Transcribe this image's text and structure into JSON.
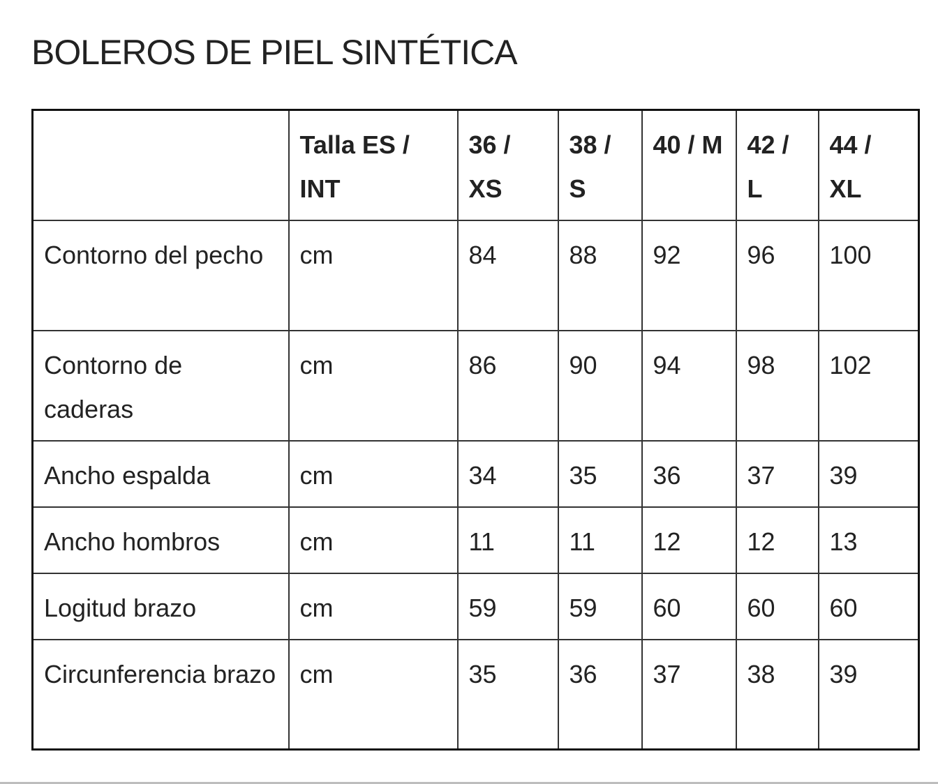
{
  "title": "BOLEROS DE PIEL SINTÉTICA",
  "table": {
    "headers": [
      "",
      "Talla ES / INT",
      "36 / XS",
      "38 / S",
      "40 / M",
      "42 / L",
      "44 / XL"
    ],
    "rows": [
      [
        "Contorno del pecho",
        "cm",
        "84",
        "88",
        "92",
        "96",
        "100"
      ],
      [
        "Contorno de caderas",
        "cm",
        "86",
        "90",
        "94",
        "98",
        "102"
      ],
      [
        "Ancho espalda",
        "cm",
        "34",
        "35",
        "36",
        "37",
        "39"
      ],
      [
        "Ancho hombros",
        "cm",
        "11",
        "11",
        "12",
        "12",
        "13"
      ],
      [
        "Logitud brazo",
        "cm",
        "59",
        "59",
        "60",
        "60",
        "60"
      ],
      [
        "Circunferencia brazo",
        "cm",
        "35",
        "36",
        "37",
        "38",
        "39"
      ]
    ]
  }
}
